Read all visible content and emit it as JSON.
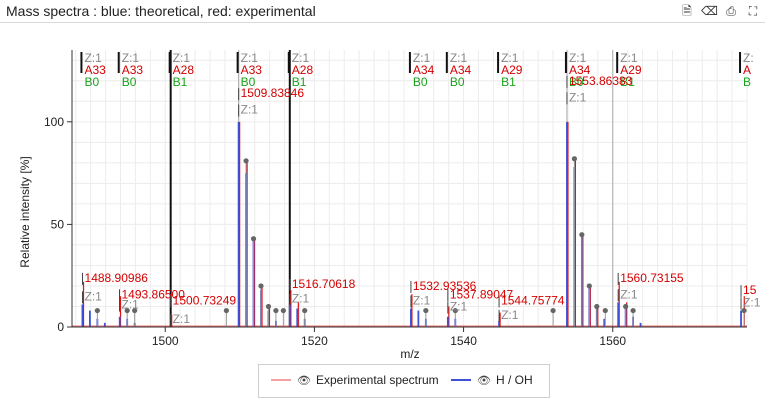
{
  "window": {
    "title": "Mass spectra : blue: theoretical, red: experimental"
  },
  "toolbar": [
    {
      "icon": "export-icon",
      "glyph": "🗎"
    },
    {
      "icon": "eraser-icon",
      "glyph": "⌫"
    },
    {
      "icon": "print-icon",
      "glyph": "⎙"
    },
    {
      "icon": "fullscreen-icon",
      "glyph": "⛶"
    }
  ],
  "legend": {
    "items": [
      {
        "label": "Experimental spectrum",
        "color": "#f2a0a0"
      },
      {
        "label": "H / OH",
        "color": "#3f51d6"
      }
    ]
  },
  "chart_data": {
    "type": "bar",
    "xlabel": "m/z",
    "ylabel": "Relative intensity [%]",
    "xlim": [
      1487.5,
      1578
    ],
    "ylim": [
      0,
      135
    ],
    "xticks": [
      1500,
      1520,
      1540,
      1560
    ],
    "yticks": [
      0,
      50,
      100
    ],
    "grid": true,
    "colors": {
      "theoretical": "#3f51d6",
      "experimental": "#e01010",
      "assignment": "#111111",
      "match": "#aaaaaa",
      "label_red": "#d40000",
      "label_green": "#19a319",
      "label_gray": "#888888"
    },
    "theoretical_peaks": [
      {
        "x": 1488.9,
        "y": 11
      },
      {
        "x": 1489.9,
        "y": 8
      },
      {
        "x": 1490.9,
        "y": 4
      },
      {
        "x": 1491.9,
        "y": 2
      },
      {
        "x": 1493.9,
        "y": 5
      },
      {
        "x": 1494.9,
        "y": 4
      },
      {
        "x": 1495.9,
        "y": 2
      },
      {
        "x": 1509.84,
        "y": 100
      },
      {
        "x": 1510.84,
        "y": 75
      },
      {
        "x": 1511.84,
        "y": 42
      },
      {
        "x": 1512.84,
        "y": 18
      },
      {
        "x": 1513.84,
        "y": 8
      },
      {
        "x": 1514.84,
        "y": 3
      },
      {
        "x": 1516.7,
        "y": 11
      },
      {
        "x": 1517.7,
        "y": 9
      },
      {
        "x": 1518.7,
        "y": 4
      },
      {
        "x": 1532.94,
        "y": 9
      },
      {
        "x": 1533.94,
        "y": 8
      },
      {
        "x": 1534.94,
        "y": 4
      },
      {
        "x": 1537.89,
        "y": 5
      },
      {
        "x": 1538.89,
        "y": 4
      },
      {
        "x": 1544.76,
        "y": 3
      },
      {
        "x": 1553.86,
        "y": 100
      },
      {
        "x": 1554.86,
        "y": 78
      },
      {
        "x": 1555.86,
        "y": 45
      },
      {
        "x": 1556.86,
        "y": 20
      },
      {
        "x": 1557.86,
        "y": 9
      },
      {
        "x": 1558.86,
        "y": 4
      },
      {
        "x": 1560.73,
        "y": 12
      },
      {
        "x": 1561.73,
        "y": 10
      },
      {
        "x": 1562.73,
        "y": 5
      },
      {
        "x": 1563.73,
        "y": 2
      },
      {
        "x": 1577.2,
        "y": 8
      }
    ],
    "experimental_peaks": [
      {
        "x": 1488.91,
        "y": 22
      },
      {
        "x": 1493.87,
        "y": 15
      },
      {
        "x": 1500.73,
        "y": 6
      },
      {
        "x": 1509.84,
        "y": 100
      },
      {
        "x": 1510.84,
        "y": 80
      },
      {
        "x": 1511.84,
        "y": 43
      },
      {
        "x": 1512.84,
        "y": 20
      },
      {
        "x": 1513.84,
        "y": 10
      },
      {
        "x": 1516.71,
        "y": 18
      },
      {
        "x": 1517.71,
        "y": 12
      },
      {
        "x": 1532.94,
        "y": 16
      },
      {
        "x": 1537.89,
        "y": 10
      },
      {
        "x": 1544.76,
        "y": 7
      },
      {
        "x": 1553.86,
        "y": 100
      },
      {
        "x": 1554.86,
        "y": 82
      },
      {
        "x": 1555.86,
        "y": 45
      },
      {
        "x": 1556.86,
        "y": 20
      },
      {
        "x": 1557.86,
        "y": 10
      },
      {
        "x": 1560.73,
        "y": 22
      },
      {
        "x": 1561.73,
        "y": 12
      },
      {
        "x": 1577.5,
        "y": 15
      }
    ],
    "matched_markers": [
      {
        "x": 1510.84,
        "y": 81
      },
      {
        "x": 1511.84,
        "y": 43
      },
      {
        "x": 1512.84,
        "y": 20
      },
      {
        "x": 1513.84,
        "y": 10
      },
      {
        "x": 1514.84,
        "y": 8
      },
      {
        "x": 1515.84,
        "y": 8
      },
      {
        "x": 1508.2,
        "y": 8
      },
      {
        "x": 1518.7,
        "y": 8
      },
      {
        "x": 1490.9,
        "y": 8
      },
      {
        "x": 1494.9,
        "y": 8
      },
      {
        "x": 1495.9,
        "y": 8
      },
      {
        "x": 1534.94,
        "y": 8
      },
      {
        "x": 1538.89,
        "y": 8
      },
      {
        "x": 1552.0,
        "y": 8
      },
      {
        "x": 1554.86,
        "y": 82
      },
      {
        "x": 1555.86,
        "y": 45
      },
      {
        "x": 1556.86,
        "y": 20
      },
      {
        "x": 1557.86,
        "y": 10
      },
      {
        "x": 1559.0,
        "y": 8
      },
      {
        "x": 1561.73,
        "y": 10
      },
      {
        "x": 1562.73,
        "y": 8
      },
      {
        "x": 1577.6,
        "y": 8
      }
    ],
    "assignment_lines": [
      {
        "x": 1500.73,
        "thick": true
      },
      {
        "x": 1516.7,
        "thick": true
      },
      {
        "x": 1509.84,
        "thick": false
      },
      {
        "x": 1553.86,
        "thick": false
      },
      {
        "x": 1560.0,
        "thick": false
      }
    ],
    "top_annotations": [
      {
        "x": 1488.9,
        "z": "Z:1",
        "ion": "A33",
        "series": "B0"
      },
      {
        "x": 1493.9,
        "z": "Z:1",
        "ion": "A33",
        "series": "B0"
      },
      {
        "x": 1500.73,
        "z": "Z:1",
        "ion": "A28",
        "series": "B1"
      },
      {
        "x": 1509.84,
        "z": "Z:1",
        "ion": "A33",
        "series": "B0"
      },
      {
        "x": 1516.7,
        "z": "Z:1",
        "ion": "A28",
        "series": "B1"
      },
      {
        "x": 1532.94,
        "z": "Z:1",
        "ion": "A34",
        "series": "B0"
      },
      {
        "x": 1537.89,
        "z": "Z:1",
        "ion": "A34",
        "series": "B0"
      },
      {
        "x": 1544.76,
        "z": "Z:1",
        "ion": "A29",
        "series": "B1"
      },
      {
        "x": 1553.86,
        "z": "Z:1",
        "ion": "A34",
        "series": "B0"
      },
      {
        "x": 1560.73,
        "z": "Z:1",
        "ion": "A29",
        "series": "B1"
      },
      {
        "x": 1577.2,
        "z": "Z:",
        "ion": "A",
        "series": "B"
      }
    ],
    "peak_labels": [
      {
        "x": 1488.91,
        "y": 22,
        "text": "1488.90986"
      },
      {
        "x": 1493.87,
        "y": 14,
        "text": "1493.86500"
      },
      {
        "x": 1500.73,
        "y": 11,
        "text": "1500.73249"
      },
      {
        "x": 1509.84,
        "y": 112,
        "text": "1509.83846"
      },
      {
        "x": 1516.71,
        "y": 19,
        "text": "1516.70618"
      },
      {
        "x": 1532.94,
        "y": 18,
        "text": "1532.93536"
      },
      {
        "x": 1537.89,
        "y": 14,
        "text": "1537.89047"
      },
      {
        "x": 1544.76,
        "y": 11,
        "text": "1544.75774"
      },
      {
        "x": 1553.86,
        "y": 118,
        "text": "1553.86383"
      },
      {
        "x": 1560.73,
        "y": 22,
        "text": "1560.73155"
      },
      {
        "x": 1577.2,
        "y": 16,
        "text": "15"
      }
    ],
    "charge_labels": [
      {
        "x": 1488.91,
        "y": 13,
        "text": "Z:1"
      },
      {
        "x": 1493.87,
        "y": 9,
        "text": "Z:1"
      },
      {
        "x": 1500.73,
        "y": 2,
        "text": "Z:1"
      },
      {
        "x": 1509.84,
        "y": 104,
        "text": "Z:1"
      },
      {
        "x": 1516.71,
        "y": 12,
        "text": "Z:1"
      },
      {
        "x": 1532.94,
        "y": 11,
        "text": "Z:1"
      },
      {
        "x": 1537.89,
        "y": 8,
        "text": "Z:1"
      },
      {
        "x": 1544.76,
        "y": 4,
        "text": "Z:1"
      },
      {
        "x": 1553.86,
        "y": 110,
        "text": "Z:1"
      },
      {
        "x": 1560.73,
        "y": 14,
        "text": "Z:1"
      },
      {
        "x": 1577.2,
        "y": 10,
        "text": "Z:1"
      }
    ]
  }
}
